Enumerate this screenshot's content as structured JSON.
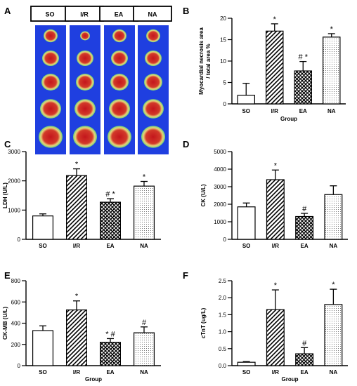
{
  "panel_a": {
    "label": "A",
    "headers": [
      "SO",
      "I/R",
      "EA",
      "NA"
    ],
    "background_color": "#1f3fe0",
    "tissue_colors": [
      "#c4161c",
      "#e8d27a",
      "#6ad07a"
    ]
  },
  "chart_data": [
    {
      "panel": "B",
      "type": "bar",
      "categories": [
        "SO",
        "I/R",
        "EA",
        "NA"
      ],
      "values": [
        2.0,
        17.0,
        7.7,
        15.6
      ],
      "errors": [
        2.8,
        1.7,
        2.2,
        0.8
      ],
      "markers": [
        "",
        "*",
        "# *",
        "*"
      ],
      "patterns": [
        "plain",
        "diagonal",
        "crosshatch",
        "dots"
      ],
      "xlabel": "Group",
      "ylabel": "Myocardial necrosis area / total area %",
      "ylim": [
        0,
        20
      ],
      "yticks": [
        0,
        5,
        10,
        15,
        20
      ],
      "ytick_labels": [
        "0",
        "5",
        "10",
        "15",
        "20"
      ]
    },
    {
      "panel": "C",
      "type": "bar",
      "categories": [
        "SO",
        "I/R",
        "EA",
        "NA"
      ],
      "values": [
        800,
        2180,
        1270,
        1820
      ],
      "errors": [
        70,
        230,
        120,
        160
      ],
      "markers": [
        "",
        "*",
        "# *",
        "*"
      ],
      "patterns": [
        "plain",
        "diagonal",
        "crosshatch",
        "dots"
      ],
      "xlabel": "",
      "ylabel": "LDH (U/L)",
      "ylim": [
        0,
        3000
      ],
      "yticks": [
        0,
        1000,
        2000,
        3000
      ],
      "ytick_labels": [
        "0",
        "1000",
        "2000",
        "3000"
      ]
    },
    {
      "panel": "D",
      "type": "bar",
      "categories": [
        "SO",
        "I/R",
        "EA",
        "NA"
      ],
      "values": [
        1850,
        3400,
        1300,
        2550
      ],
      "errors": [
        220,
        550,
        180,
        500
      ],
      "markers": [
        "",
        "*",
        "#",
        ""
      ],
      "patterns": [
        "plain",
        "diagonal",
        "crosshatch",
        "dots"
      ],
      "xlabel": "",
      "ylabel": "CK (U/L)",
      "ylim": [
        0,
        5000
      ],
      "yticks": [
        0,
        1000,
        2000,
        3000,
        4000,
        5000
      ],
      "ytick_labels": [
        "0",
        "1000",
        "2000",
        "3000",
        "4000",
        "5000"
      ]
    },
    {
      "panel": "E",
      "type": "bar",
      "categories": [
        "SO",
        "I/R",
        "EA",
        "NA"
      ],
      "values": [
        330,
        525,
        220,
        310
      ],
      "errors": [
        45,
        85,
        35,
        55
      ],
      "markers": [
        "",
        "*",
        "* #",
        "#"
      ],
      "patterns": [
        "plain",
        "diagonal",
        "crosshatch",
        "dots"
      ],
      "xlabel": "Group",
      "ylabel": "CK-MB (U/L)",
      "ylim": [
        0,
        800
      ],
      "yticks": [
        0,
        200,
        400,
        600,
        800
      ],
      "ytick_labels": [
        "0",
        "200",
        "400",
        "600",
        "800"
      ]
    },
    {
      "panel": "F",
      "type": "bar",
      "categories": [
        "SO",
        "I/R",
        "EA",
        "NA"
      ],
      "values": [
        0.1,
        1.65,
        0.35,
        1.8
      ],
      "errors": [
        0.02,
        0.58,
        0.18,
        0.45
      ],
      "markers": [
        "",
        "*",
        "#",
        "*"
      ],
      "patterns": [
        "plain",
        "diagonal",
        "crosshatch",
        "dots"
      ],
      "xlabel": "Group",
      "ylabel": "cTnT (ug/L)",
      "ylim": [
        0,
        2.5
      ],
      "yticks": [
        0,
        0.5,
        1.0,
        1.5,
        2.0,
        2.5
      ],
      "ytick_labels": [
        "0.0",
        "0.5",
        "1.0",
        "1.5",
        "2.0",
        "2.5"
      ]
    }
  ]
}
